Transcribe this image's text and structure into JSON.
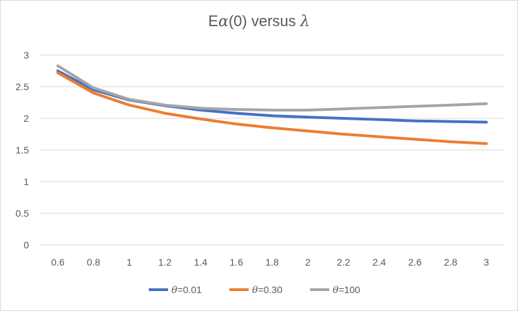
{
  "chart_data": {
    "type": "line",
    "title_prefix": "E",
    "title_alpha": "α",
    "title_middle": "(0) versus ",
    "title_lambda": "λ",
    "x": [
      "0.6",
      "0.8",
      "1",
      "1.2",
      "1.4",
      "1.6",
      "1.8",
      "2",
      "2.2",
      "2.4",
      "2.6",
      "2.8",
      "3"
    ],
    "y_ticks": [
      "0",
      "0.5",
      "1",
      "1.5",
      "2",
      "2.5",
      "3"
    ],
    "ylim": [
      0,
      3
    ],
    "grid": true,
    "legend_position": "bottom",
    "series": [
      {
        "name_symbol": "θ",
        "name_value": "=0.01",
        "color": "#4472c4",
        "values": [
          2.75,
          2.45,
          2.29,
          2.2,
          2.13,
          2.08,
          2.04,
          2.02,
          2.0,
          1.98,
          1.96,
          1.95,
          1.94
        ]
      },
      {
        "name_symbol": "θ",
        "name_value": "=0.30",
        "color": "#ed7d31",
        "values": [
          2.72,
          2.4,
          2.21,
          2.08,
          1.99,
          1.91,
          1.85,
          1.8,
          1.75,
          1.71,
          1.67,
          1.63,
          1.6
        ]
      },
      {
        "name_symbol": "θ",
        "name_value": "=100",
        "color": "#a5a5a5",
        "values": [
          2.83,
          2.48,
          2.3,
          2.21,
          2.16,
          2.14,
          2.13,
          2.13,
          2.15,
          2.17,
          2.19,
          2.21,
          2.23
        ]
      }
    ]
  }
}
